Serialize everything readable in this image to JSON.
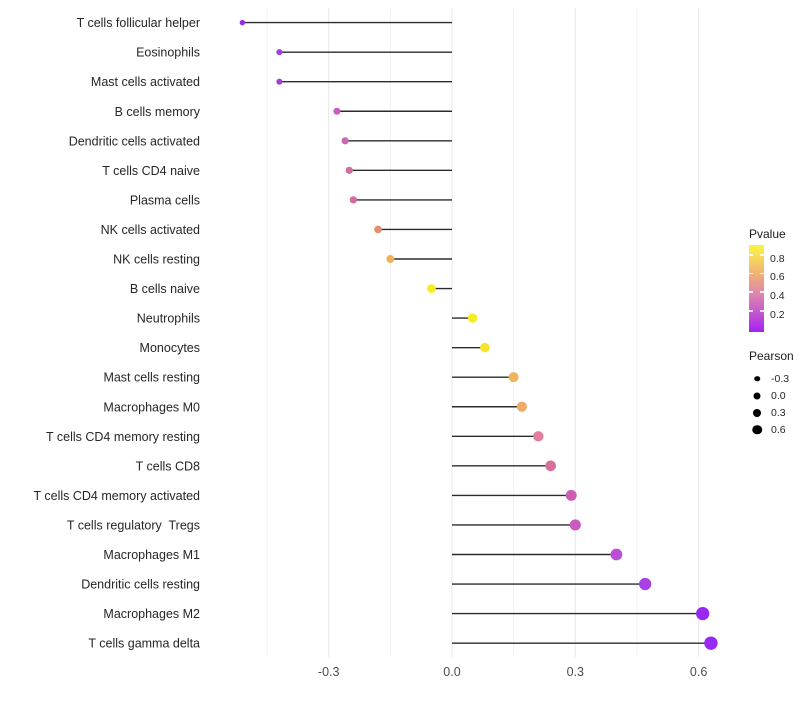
{
  "chart_data": {
    "type": "lollipop",
    "orientation": "horizontal",
    "title": "",
    "xlabel": "",
    "ylabel": "",
    "x_ticks": [
      {
        "value": -0.3,
        "label": "-0.3"
      },
      {
        "value": 0.0,
        "label": "0.0"
      },
      {
        "value": 0.3,
        "label": "0.3"
      },
      {
        "value": 0.6,
        "label": "0.6"
      }
    ],
    "x_minor_ticks": [
      -0.45,
      -0.15,
      0.15,
      0.45
    ],
    "xlim": [
      -0.567,
      0.687
    ],
    "grid": "vertical only, light gray, no axis lines",
    "categories": [
      "T cells follicular helper",
      "Eosinophils",
      "Mast cells activated",
      "B cells memory",
      "Dendritic cells activated",
      "T cells CD4 naive",
      "Plasma cells",
      "NK cells activated",
      "NK cells resting",
      "B cells naive",
      "Neutrophils",
      "Monocytes",
      "Mast cells resting",
      "Macrophages M0",
      "T cells CD4 memory resting",
      "T cells CD8",
      "T cells CD4 memory activated",
      "T cells regulatory  Tregs",
      "Macrophages M1",
      "Dendritic cells resting",
      "Macrophages M2",
      "T cells gamma delta"
    ],
    "series": [
      {
        "name": "Pearson",
        "values": [
          -0.51,
          -0.42,
          -0.42,
          -0.28,
          -0.26,
          -0.25,
          -0.24,
          -0.18,
          -0.15,
          -0.05,
          0.05,
          0.08,
          0.15,
          0.17,
          0.21,
          0.24,
          0.29,
          0.3,
          0.4,
          0.47,
          0.61,
          0.63
        ]
      }
    ],
    "point_colors": [
      "#9b2bf0",
      "#a73bdc",
      "#a93bd8",
      "#c55ec4",
      "#cc67b3",
      "#d26ba2",
      "#d26c9f",
      "#e4906f",
      "#eeb25d",
      "#f6ee1c",
      "#f6ed1e",
      "#f5e528",
      "#f0b45f",
      "#efaa6a",
      "#de7f9d",
      "#d86f9b",
      "#cc5fb5",
      "#c95bc0",
      "#ba4fd5",
      "#a93fe5",
      "#9529f3",
      "#9829f5"
    ],
    "color_encoding": "Pvalue",
    "size_encoding": "Pearson",
    "stem_color": "#2b2b2b",
    "legend_position": "right"
  },
  "legend": {
    "pvalue": {
      "title": "Pvalue",
      "tick_labels": [
        "0.8",
        "0.6",
        "0.4",
        "0.2"
      ],
      "gradient_top_to_bottom": [
        "#fbf43f",
        "#f7d55f",
        "#eeab7b",
        "#de86ac",
        "#c257d0",
        "#a621f3"
      ]
    },
    "pearson": {
      "title": "Pearson",
      "items": [
        {
          "label": "-0.3",
          "diameter": 5.5
        },
        {
          "label": "0.0",
          "diameter": 7
        },
        {
          "label": "0.3",
          "diameter": 8
        },
        {
          "label": "0.6",
          "diameter": 9.5
        }
      ]
    }
  }
}
